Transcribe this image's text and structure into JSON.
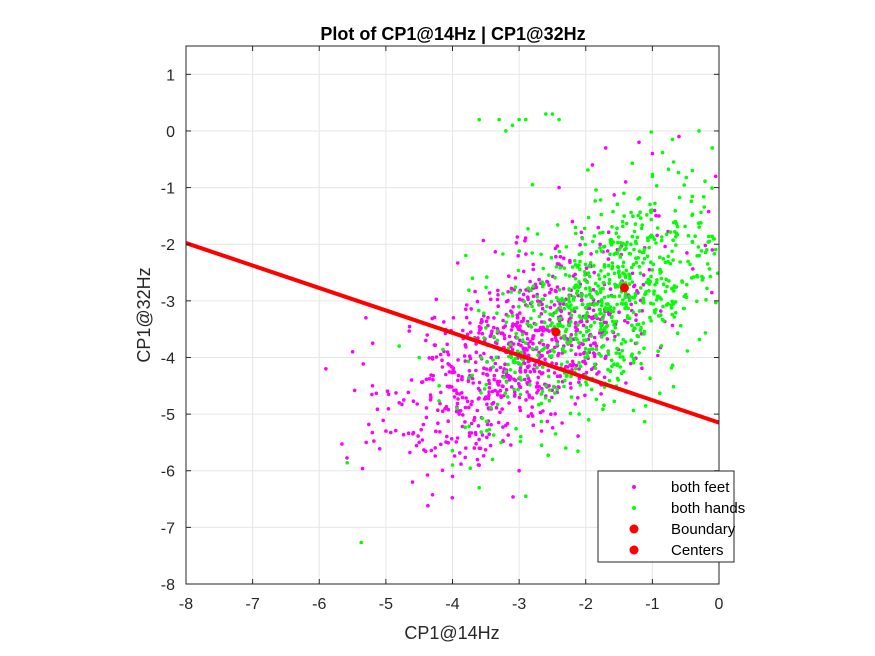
{
  "chart_data": {
    "type": "scatter",
    "title": "Plot of CP1@14Hz | CP1@32Hz",
    "xlabel": "CP1@14Hz",
    "ylabel": "CP1@32Hz",
    "xlim": [
      -8,
      0
    ],
    "ylim": [
      -8,
      1.5
    ],
    "xticks": [
      -8,
      -7,
      -6,
      -5,
      -4,
      -3,
      -2,
      -1,
      0
    ],
    "yticks": [
      -8,
      -7,
      -6,
      -5,
      -4,
      -3,
      -2,
      -1,
      0,
      1
    ],
    "grid": true,
    "legend_position": "bottom-right",
    "colors": {
      "feet": "#ff00ff",
      "hands": "#00ff00",
      "boundary": "#ff0000",
      "centers": "#ff0000",
      "grid": "#e6e6e6",
      "axis": "#262626"
    },
    "series": [
      {
        "name": "both feet",
        "kind": "points",
        "x_mean": -2.9,
        "y_mean": -3.85,
        "x_sd": 0.95,
        "y_sd": 0.95,
        "correlation": 0.6,
        "x": [
          -5.9,
          -5.5,
          -5.3,
          -5.2,
          -5.0,
          -4.8,
          -4.6,
          -4.5,
          -4.3,
          -4.0,
          -3.8,
          -3.6,
          -3.2,
          -3.0,
          -2.6,
          -2.2,
          -1.9,
          -1.7,
          -1.4,
          -1.2,
          -0.9,
          -0.6,
          -0.3,
          -0.1,
          -0.05,
          -1.0,
          -1.5,
          -2.4,
          -3.4,
          -4.1,
          -4.4,
          -3.9,
          -3.5
        ],
        "y": [
          -4.2,
          -3.9,
          -3.3,
          -4.5,
          -5.3,
          -4.8,
          -6.2,
          -5.5,
          -4.0,
          -6.1,
          -5.6,
          -5.9,
          -5.2,
          -6.0,
          -4.1,
          -1.6,
          -0.6,
          -0.3,
          -0.9,
          -0.2,
          -1.5,
          -0.1,
          -2.2,
          -2.1,
          -0.8,
          -0.4,
          -3.2,
          -1.0,
          -4.6,
          -4.3,
          -3.7,
          -5.0,
          -4.7
        ]
      },
      {
        "name": "both hands",
        "kind": "points",
        "x_mean": -1.65,
        "y_mean": -3.0,
        "x_sd": 0.95,
        "y_sd": 0.95,
        "correlation": 0.55,
        "x": [
          -3.6,
          -3.3,
          -3.2,
          -3.1,
          -3.0,
          -2.9,
          -2.6,
          -2.5,
          -2.4,
          -2.8,
          -3.8,
          -4.0,
          -3.6,
          -3.4,
          -2.9,
          -2.1,
          -0.3,
          -0.1,
          -0.4,
          -0.7,
          -1.0,
          -2.3,
          -4.2,
          -4.5,
          -4.8,
          -3.7
        ],
        "y": [
          0.2,
          0.2,
          0.0,
          0.1,
          0.2,
          0.2,
          0.3,
          0.3,
          0.2,
          -0.95,
          -2.2,
          -5.9,
          -6.3,
          -5.8,
          -6.45,
          -5.0,
          0.0,
          -0.3,
          -0.7,
          -0.15,
          -0.8,
          -5.6,
          -4.5,
          -4.0,
          -3.8,
          -2.6
        ]
      },
      {
        "name": "Boundary",
        "kind": "line",
        "x": [
          -8,
          0
        ],
        "y": [
          -1.98,
          -5.15
        ]
      },
      {
        "name": "Centers",
        "kind": "markers",
        "x": [
          -2.45,
          -1.42
        ],
        "y": [
          -3.55,
          -2.77
        ]
      }
    ]
  }
}
